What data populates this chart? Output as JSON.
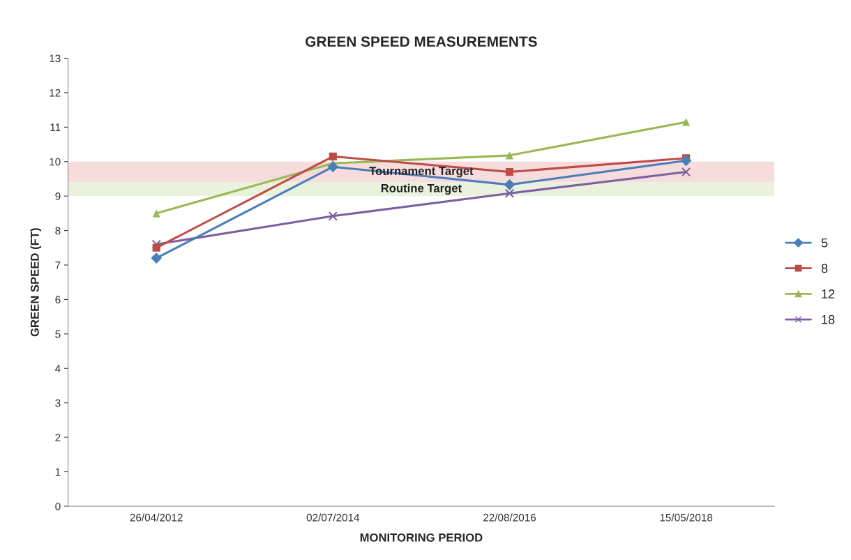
{
  "chart_data": {
    "type": "line",
    "title": "GREEN SPEED MEASUREMENTS",
    "xlabel": "MONITORING PERIOD",
    "ylabel": "GREEN SPEED (FT)",
    "categories": [
      "26/04/2012",
      "02/07/2014",
      "22/08/2016",
      "15/05/2018"
    ],
    "series": [
      {
        "name": "5",
        "color": "#4a7ebb",
        "marker": "diamond",
        "values": [
          7.2,
          9.85,
          9.33,
          10.03
        ]
      },
      {
        "name": "8",
        "color": "#be4b48",
        "marker": "square",
        "values": [
          7.5,
          10.15,
          9.7,
          10.1
        ]
      },
      {
        "name": "12",
        "color": "#98b954",
        "marker": "triangle",
        "values": [
          8.5,
          9.95,
          10.18,
          11.15
        ]
      },
      {
        "name": "18",
        "color": "#7d60a0",
        "marker": "cross",
        "values": [
          7.6,
          8.42,
          9.08,
          9.7
        ]
      }
    ],
    "bands": [
      {
        "axis": "y",
        "from": 9.4,
        "to": 10,
        "label": "Tournament Target",
        "color": "#f6dcdc"
      },
      {
        "axis": "y",
        "from": 9,
        "to": 9.4,
        "label": "Routine Target",
        "color": "#eaf1dd"
      }
    ],
    "ylim": [
      0,
      13
    ],
    "yticks": [
      0,
      1,
      2,
      3,
      4,
      5,
      6,
      7,
      8,
      9,
      10,
      11,
      12,
      13
    ],
    "grid": false,
    "legend": "right"
  }
}
